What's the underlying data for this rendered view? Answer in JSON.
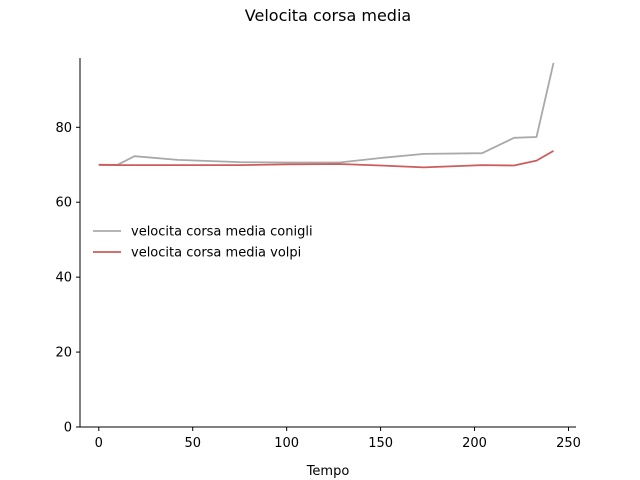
{
  "chart_data": {
    "type": "line",
    "title": "Velocita corsa media",
    "xlabel": "Tempo",
    "ylabel": "",
    "xlim": [
      -10,
      254
    ],
    "ylim": [
      0,
      98.5
    ],
    "xticks": [
      0,
      50,
      100,
      150,
      200,
      250
    ],
    "yticks": [
      0,
      20,
      40,
      60,
      80
    ],
    "grid": false,
    "legend_position": "center-left",
    "series": [
      {
        "name": "velocita corsa media conigli",
        "color": "#a9a9a9",
        "x": [
          0,
          10,
          19,
          42,
          75,
          100,
          128,
          150,
          173,
          204,
          221,
          233,
          242
        ],
        "y": [
          70,
          70,
          72.3,
          71.3,
          70.7,
          70.6,
          70.6,
          71.8,
          72.9,
          73.1,
          77.2,
          77.4,
          97.2
        ]
      },
      {
        "name": "velocita corsa media volpi",
        "color": "#cd5c5c",
        "x": [
          0,
          10,
          19,
          42,
          75,
          100,
          128,
          150,
          173,
          204,
          221,
          233,
          242
        ],
        "y": [
          70,
          69.9,
          69.9,
          69.9,
          69.9,
          70.1,
          70.2,
          69.8,
          69.3,
          69.9,
          69.8,
          71.1,
          73.7
        ]
      }
    ]
  }
}
